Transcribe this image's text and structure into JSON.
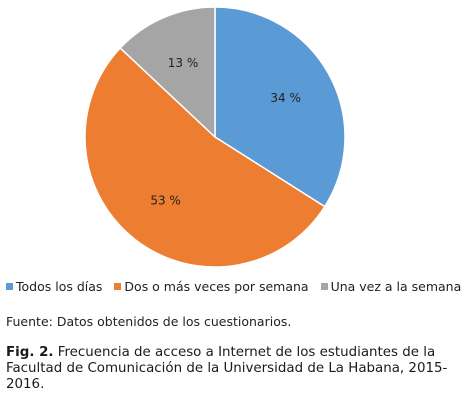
{
  "chart_data": {
    "type": "pie",
    "categories": [
      "Todos los días",
      "Dos o más veces por semana",
      "Una vez a la semana"
    ],
    "values": [
      34,
      53,
      13
    ],
    "labels": [
      "34 %",
      "53 %",
      "13 %"
    ],
    "colors": [
      "#5B9BD5",
      "#ED7D31",
      "#A5A5A5"
    ],
    "legend": "bottom"
  },
  "source": "Fuente: Datos obtenidos de los cuestionarios.",
  "caption": {
    "prefix": "Fig. 2.",
    "text": " Frecuencia de acceso a Internet de los estudiantes de la Facultad de Comunicación de la Universidad de La Habana, 2015-2016."
  }
}
